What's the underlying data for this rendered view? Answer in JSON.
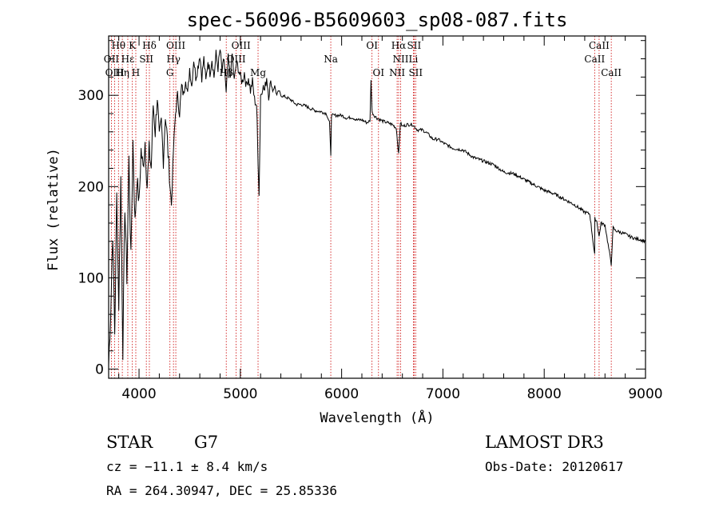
{
  "chart_data": {
    "type": "line",
    "title": "spec-56096-B5609603_sp08-087.fits",
    "xlabel": "Wavelength (Å)",
    "ylabel": "Flux (relative)",
    "xlim": [
      3700,
      9000
    ],
    "ylim": [
      -10,
      365
    ],
    "x_ticks": [
      4000,
      5000,
      6000,
      7000,
      8000,
      9000
    ],
    "y_ticks": [
      0,
      100,
      200,
      300
    ],
    "x_tick_labels": [
      "4000",
      "5000",
      "6000",
      "7000",
      "8000",
      "9000"
    ],
    "y_tick_labels": [
      "0",
      "100",
      "200",
      "300"
    ],
    "series": [
      {
        "name": "flux",
        "points": [
          [
            3700,
            5
          ],
          [
            3720,
            60
          ],
          [
            3740,
            150
          ],
          [
            3760,
            40
          ],
          [
            3780,
            190
          ],
          [
            3800,
            70
          ],
          [
            3820,
            210
          ],
          [
            3840,
            20
          ],
          [
            3860,
            180
          ],
          [
            3880,
            100
          ],
          [
            3900,
            230
          ],
          [
            3920,
            120
          ],
          [
            3940,
            250
          ],
          [
            3960,
            160
          ],
          [
            3980,
            210
          ],
          [
            4000,
            180
          ],
          [
            4020,
            240
          ],
          [
            4040,
            220
          ],
          [
            4060,
            250
          ],
          [
            4080,
            200
          ],
          [
            4100,
            240
          ],
          [
            4120,
            220
          ],
          [
            4140,
            290
          ],
          [
            4160,
            260
          ],
          [
            4180,
            300
          ],
          [
            4200,
            250
          ],
          [
            4220,
            270
          ],
          [
            4240,
            230
          ],
          [
            4260,
            280
          ],
          [
            4280,
            250
          ],
          [
            4300,
            210
          ],
          [
            4320,
            180
          ],
          [
            4340,
            240
          ],
          [
            4360,
            280
          ],
          [
            4380,
            300
          ],
          [
            4400,
            280
          ],
          [
            4420,
            310
          ],
          [
            4440,
            300
          ],
          [
            4460,
            320
          ],
          [
            4480,
            300
          ],
          [
            4500,
            330
          ],
          [
            4520,
            310
          ],
          [
            4540,
            340
          ],
          [
            4560,
            320
          ],
          [
            4580,
            330
          ],
          [
            4600,
            345
          ],
          [
            4620,
            320
          ],
          [
            4640,
            340
          ],
          [
            4660,
            315
          ],
          [
            4680,
            338
          ],
          [
            4700,
            325
          ],
          [
            4720,
            340
          ],
          [
            4740,
            320
          ],
          [
            4760,
            345
          ],
          [
            4780,
            330
          ],
          [
            4800,
            350
          ],
          [
            4820,
            325
          ],
          [
            4840,
            340
          ],
          [
            4860,
            300
          ],
          [
            4880,
            340
          ],
          [
            4900,
            320
          ],
          [
            4920,
            345
          ],
          [
            4940,
            315
          ],
          [
            4960,
            335
          ],
          [
            4980,
            330
          ],
          [
            5000,
            320
          ],
          [
            5020,
            315
          ],
          [
            5040,
            325
          ],
          [
            5060,
            310
          ],
          [
            5080,
            320
          ],
          [
            5100,
            305
          ],
          [
            5120,
            315
          ],
          [
            5140,
            295
          ],
          [
            5160,
            290
          ],
          [
            5175,
            230
          ],
          [
            5185,
            190
          ],
          [
            5200,
            300
          ],
          [
            5220,
            310
          ],
          [
            5240,
            305
          ],
          [
            5260,
            320
          ],
          [
            5280,
            300
          ],
          [
            5300,
            315
          ],
          [
            5320,
            305
          ],
          [
            5340,
            310
          ],
          [
            5360,
            300
          ],
          [
            5380,
            305
          ],
          [
            5400,
            300
          ],
          [
            5450,
            298
          ],
          [
            5500,
            295
          ],
          [
            5550,
            290
          ],
          [
            5600,
            290
          ],
          [
            5650,
            288
          ],
          [
            5700,
            285
          ],
          [
            5750,
            283
          ],
          [
            5800,
            282
          ],
          [
            5850,
            280
          ],
          [
            5880,
            270
          ],
          [
            5893,
            235
          ],
          [
            5900,
            278
          ],
          [
            5950,
            278
          ],
          [
            6000,
            278
          ],
          [
            6050,
            275
          ],
          [
            6100,
            276
          ],
          [
            6150,
            273
          ],
          [
            6200,
            273
          ],
          [
            6250,
            270
          ],
          [
            6280,
            272
          ],
          [
            6290,
            318
          ],
          [
            6300,
            282
          ],
          [
            6320,
            278
          ],
          [
            6350,
            275
          ],
          [
            6400,
            272
          ],
          [
            6450,
            270
          ],
          [
            6500,
            268
          ],
          [
            6540,
            264
          ],
          [
            6563,
            235
          ],
          [
            6580,
            270
          ],
          [
            6600,
            266
          ],
          [
            6650,
            268
          ],
          [
            6700,
            268
          ],
          [
            6750,
            262
          ],
          [
            6800,
            262
          ],
          [
            6850,
            258
          ],
          [
            6900,
            252
          ],
          [
            6950,
            252
          ],
          [
            7000,
            248
          ],
          [
            7100,
            242
          ],
          [
            7200,
            240
          ],
          [
            7300,
            232
          ],
          [
            7400,
            228
          ],
          [
            7500,
            224
          ],
          [
            7600,
            216
          ],
          [
            7700,
            214
          ],
          [
            7800,
            208
          ],
          [
            7900,
            202
          ],
          [
            8000,
            196
          ],
          [
            8100,
            192
          ],
          [
            8200,
            186
          ],
          [
            8300,
            180
          ],
          [
            8400,
            172
          ],
          [
            8450,
            170
          ],
          [
            8498,
            125
          ],
          [
            8500,
            165
          ],
          [
            8520,
            162
          ],
          [
            8542,
            145
          ],
          [
            8560,
            160
          ],
          [
            8600,
            158
          ],
          [
            8662,
            115
          ],
          [
            8680,
            155
          ],
          [
            8700,
            152
          ],
          [
            8750,
            150
          ],
          [
            8800,
            148
          ],
          [
            8850,
            145
          ],
          [
            8900,
            143
          ],
          [
            8950,
            142
          ],
          [
            9000,
            140
          ]
        ]
      }
    ],
    "emission_lines": [
      {
        "label": "Hθ",
        "wavelength": 3797,
        "row": 1
      },
      {
        "label": "K",
        "wavelength": 3934,
        "row": 1
      },
      {
        "label": "Hδ",
        "wavelength": 4102,
        "row": 1
      },
      {
        "label": "OIII",
        "wavelength": 4363,
        "row": 1
      },
      {
        "label": "OIII",
        "wavelength": 5007,
        "row": 1
      },
      {
        "label": "OI",
        "wavelength": 6300,
        "row": 1
      },
      {
        "label": "Hα",
        "wavelength": 6563,
        "row": 1
      },
      {
        "label": "SII",
        "wavelength": 6716,
        "row": 1
      },
      {
        "label": "CaII",
        "wavelength": 8542,
        "row": 1
      },
      {
        "label": "OII",
        "wavelength": 3727,
        "row": 2
      },
      {
        "label": "Hε",
        "wavelength": 3889,
        "row": 2
      },
      {
        "label": "SII",
        "wavelength": 4072,
        "row": 2
      },
      {
        "label": "Hγ",
        "wavelength": 4340,
        "row": 2
      },
      {
        "label": "OIII",
        "wavelength": 4959,
        "row": 2
      },
      {
        "label": "Na",
        "wavelength": 5893,
        "row": 2
      },
      {
        "label": "NII",
        "wavelength": 6583,
        "row": 2
      },
      {
        "label": "Li",
        "wavelength": 6708,
        "row": 2
      },
      {
        "label": "CaII",
        "wavelength": 8498,
        "row": 2
      },
      {
        "label": "OIII",
        "wavelength": 3760,
        "row": 3
      },
      {
        "label": "Hη",
        "wavelength": 3835,
        "row": 3
      },
      {
        "label": "H",
        "wavelength": 3968,
        "row": 3
      },
      {
        "label": "G",
        "wavelength": 4305,
        "row": 3
      },
      {
        "label": "Hβ",
        "wavelength": 4861,
        "row": 3
      },
      {
        "label": "Mg",
        "wavelength": 5175,
        "row": 3
      },
      {
        "label": "OI",
        "wavelength": 6364,
        "row": 3
      },
      {
        "label": "NII",
        "wavelength": 6548,
        "row": 3
      },
      {
        "label": "SII",
        "wavelength": 6731,
        "row": 3
      },
      {
        "label": "CaII",
        "wavelength": 8662,
        "row": 3
      }
    ]
  },
  "info": {
    "object_class": "STAR",
    "subclass": "G7",
    "survey": "LAMOST DR3",
    "cz": "cz = −11.1 ± 8.4 km/s",
    "obs_date": "Obs-Date: 20120617",
    "coords": "RA = 264.30947, DEC =  25.85336"
  },
  "colors": {
    "line": "#000000",
    "marker_line": "#cc0000",
    "background": "#ffffff"
  }
}
